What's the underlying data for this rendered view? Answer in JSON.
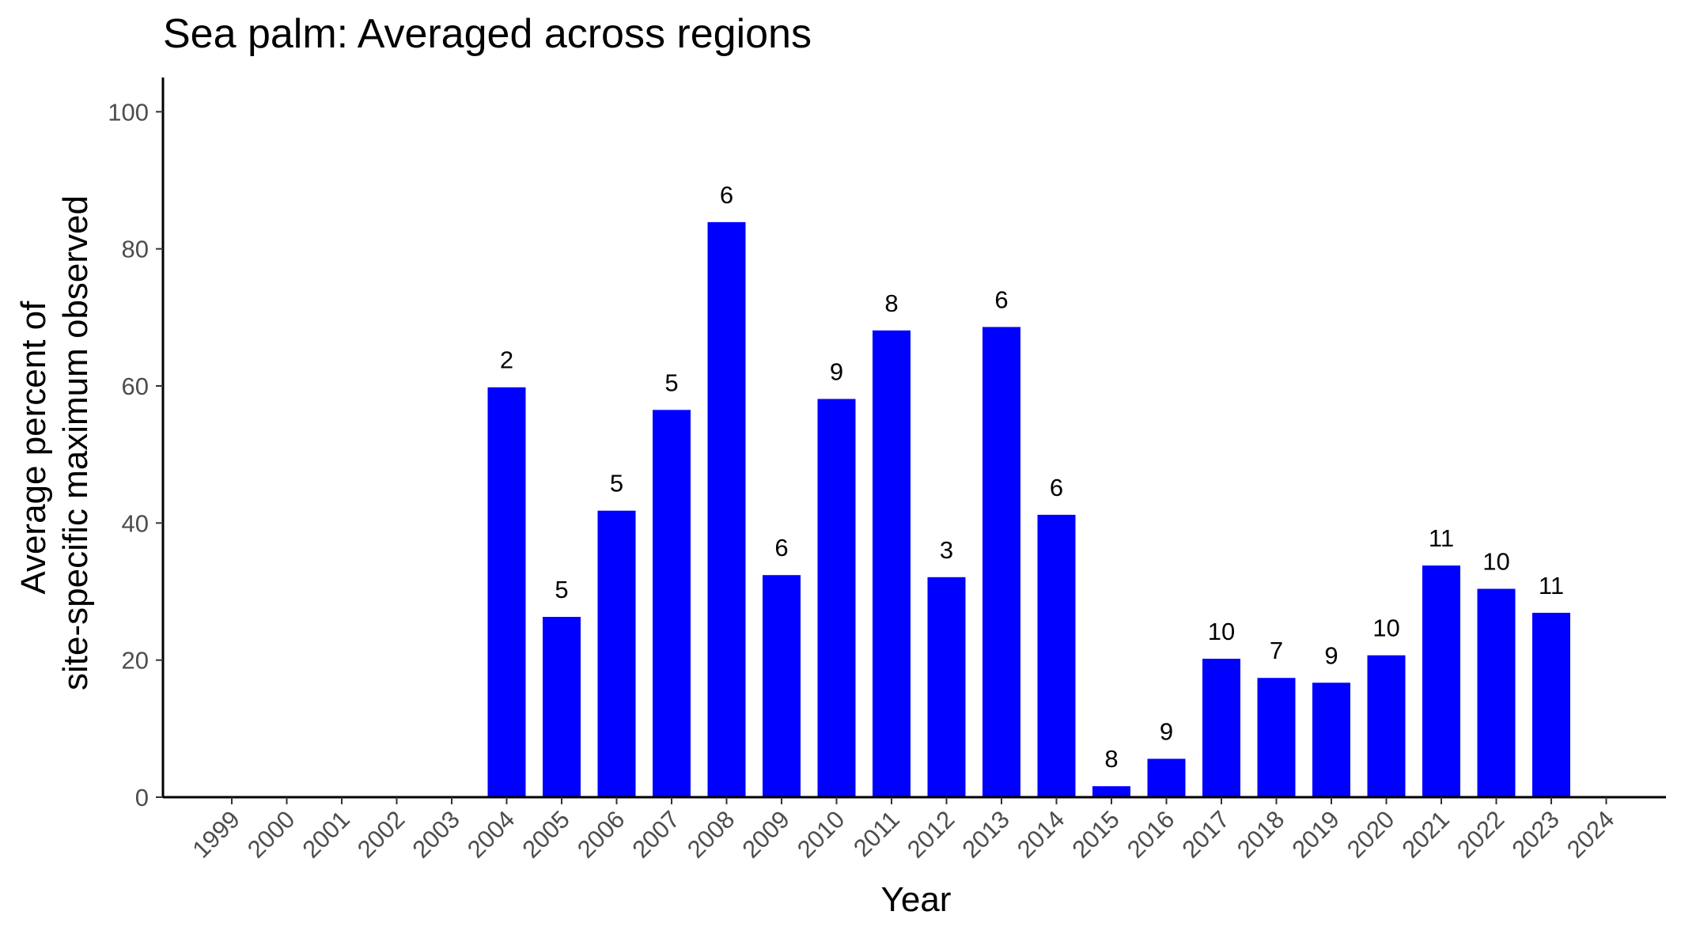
{
  "chart_data": {
    "type": "bar",
    "title": "Sea palm: Averaged across regions",
    "xlabel": "Year",
    "ylabel_lines": [
      "Average percent of",
      "site-specific maximum observed"
    ],
    "categories": [
      "1999",
      "2000",
      "2001",
      "2002",
      "2003",
      "2004",
      "2005",
      "2006",
      "2007",
      "2008",
      "2009",
      "2010",
      "2011",
      "2012",
      "2013",
      "2014",
      "2015",
      "2016",
      "2017",
      "2018",
      "2019",
      "2020",
      "2021",
      "2022",
      "2023",
      "2024"
    ],
    "values": [
      null,
      null,
      null,
      null,
      null,
      59.8,
      26.3,
      41.8,
      56.5,
      83.9,
      32.4,
      58.1,
      68.1,
      32.1,
      68.6,
      41.2,
      1.6,
      5.6,
      20.2,
      17.4,
      16.7,
      20.7,
      33.8,
      30.4,
      26.9,
      null
    ],
    "labels": [
      "",
      "",
      "",
      "",
      "",
      "2",
      "5",
      "5",
      "5",
      "6",
      "6",
      "9",
      "8",
      "3",
      "6",
      "6",
      "8",
      "9",
      "10",
      "7",
      "9",
      "10",
      "11",
      "10",
      "11",
      ""
    ],
    "ylim": [
      0,
      105
    ],
    "yticks": [
      0,
      20,
      40,
      60,
      80,
      100
    ],
    "bar_color": "#0000ff",
    "grid": false,
    "legend": "none"
  }
}
